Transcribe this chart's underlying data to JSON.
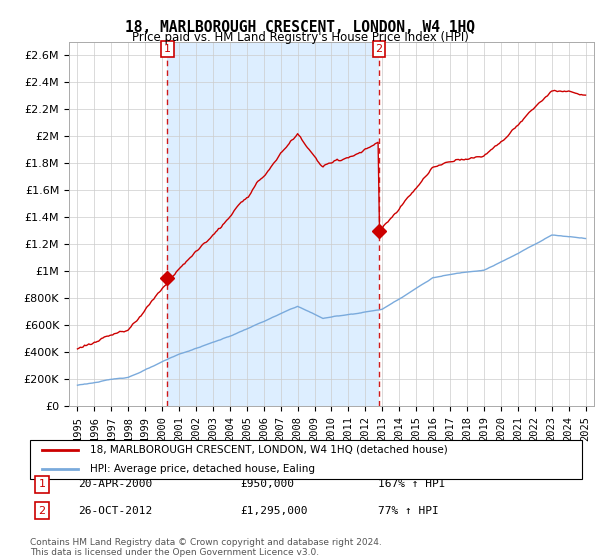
{
  "title": "18, MARLBOROUGH CRESCENT, LONDON, W4 1HQ",
  "subtitle": "Price paid vs. HM Land Registry's House Price Index (HPI)",
  "sale1_date": "20-APR-2000",
  "sale1_price": 950000,
  "sale1_year": 2000.3,
  "sale1_label": "167% ↑ HPI",
  "sale2_date": "26-OCT-2012",
  "sale2_price": 1295000,
  "sale2_year": 2012.8,
  "sale2_label": "77% ↑ HPI",
  "hpi_color": "#7aaadc",
  "price_color": "#cc0000",
  "marker_color": "#cc0000",
  "shade_color": "#ddeeff",
  "background_color": "#ffffff",
  "grid_color": "#cccccc",
  "ylim": [
    0,
    2700000
  ],
  "yticks": [
    0,
    200000,
    400000,
    600000,
    800000,
    1000000,
    1200000,
    1400000,
    1600000,
    1800000,
    2000000,
    2200000,
    2400000,
    2600000
  ],
  "legend_label1": "18, MARLBOROUGH CRESCENT, LONDON, W4 1HQ (detached house)",
  "legend_label2": "HPI: Average price, detached house, Ealing",
  "footer": "Contains HM Land Registry data © Crown copyright and database right 2024.\nThis data is licensed under the Open Government Licence v3.0."
}
